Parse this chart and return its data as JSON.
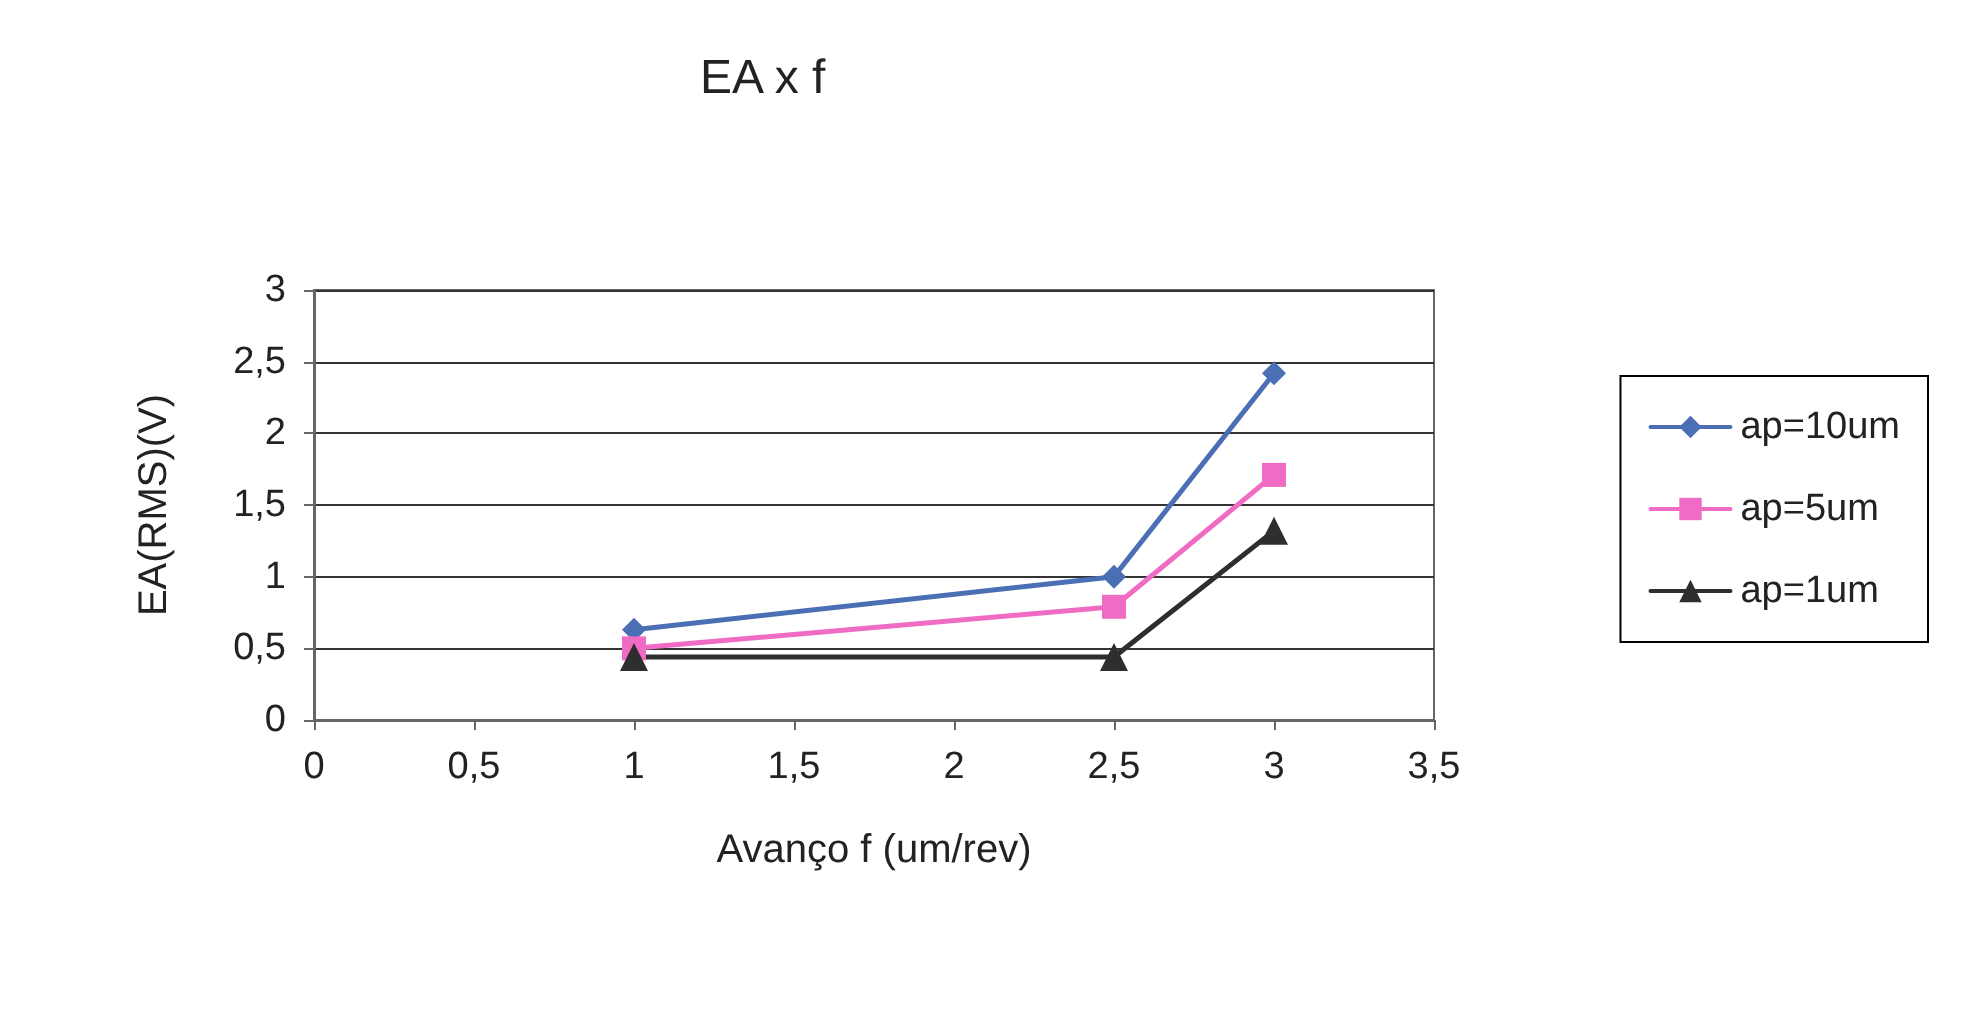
{
  "chart_data": {
    "type": "line",
    "title": "EA x f",
    "xlabel": "Avanço f (um/rev)",
    "ylabel": "EA(RMS)(V)",
    "x": [
      1,
      2.5,
      3
    ],
    "series": [
      {
        "name": "ap=10um",
        "color": "#4a6fb5",
        "marker": "diamond",
        "values": [
          0.63,
          1.0,
          2.42
        ]
      },
      {
        "name": "ap=5um",
        "color": "#f06cc4",
        "marker": "square",
        "values": [
          0.5,
          0.79,
          1.71
        ]
      },
      {
        "name": "ap=1um",
        "color": "#2e2e2e",
        "marker": "triangle",
        "values": [
          0.44,
          0.44,
          1.32
        ]
      }
    ],
    "xlim": [
      0,
      3.5
    ],
    "xticks": [
      0,
      {
        "value": 0.5,
        "label": "0,5"
      },
      1,
      {
        "value": 1.5,
        "label": "1,5"
      },
      2,
      {
        "value": 2.5,
        "label": "2,5"
      },
      3,
      {
        "value": 3.5,
        "label": "3,5"
      }
    ],
    "ylim": [
      0,
      3
    ],
    "yticks": [
      0,
      {
        "value": 0.5,
        "label": "0,5"
      },
      1,
      {
        "value": 1.5,
        "label": "1,5"
      },
      2,
      {
        "value": 2.5,
        "label": "2,5"
      },
      3
    ],
    "grid": "y",
    "legend": "right",
    "line_style": "solid"
  }
}
